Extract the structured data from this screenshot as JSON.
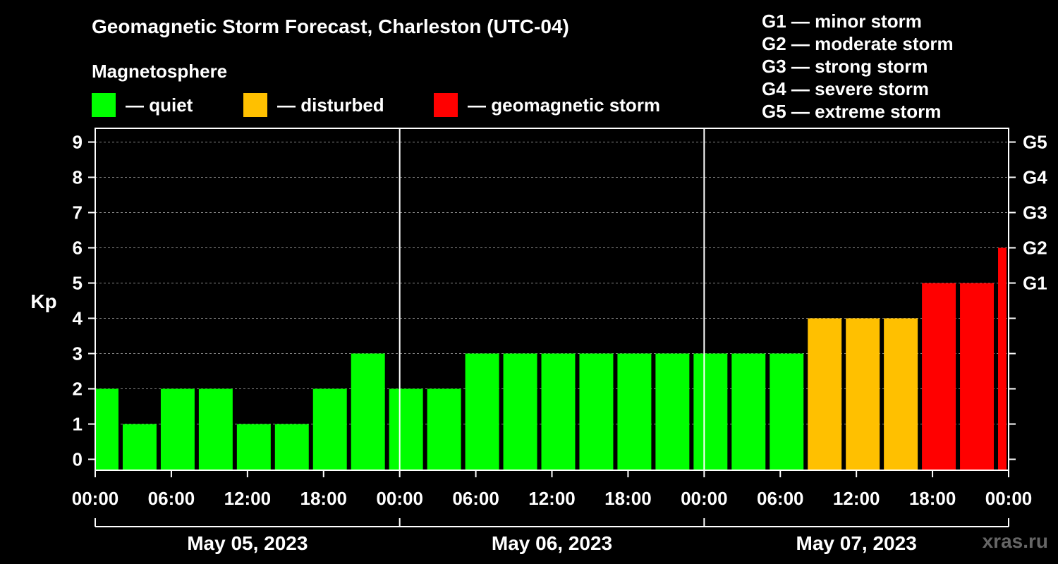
{
  "title": "Geomagnetic Storm Forecast, Charleston (UTC-04)",
  "legend": {
    "heading": "Magnetosphere",
    "items": [
      {
        "label": "— quiet",
        "color": "#00ff00"
      },
      {
        "label": "— disturbed",
        "color": "#ffc000"
      },
      {
        "label": "— geomagnetic storm",
        "color": "#ff0000"
      }
    ]
  },
  "storm_scale": [
    "G1 — minor storm",
    "G2 — moderate storm",
    "G3 — strong storm",
    "G4 — severe storm",
    "G5 — extreme storm"
  ],
  "watermark": "xras.ru",
  "chart_data": {
    "type": "bar",
    "ylabel": "Kp",
    "ylim": [
      0,
      9
    ],
    "yticks": [
      0,
      1,
      2,
      3,
      4,
      5,
      6,
      7,
      8,
      9
    ],
    "right_axis_labels": [
      {
        "kp": 5,
        "label": "G1"
      },
      {
        "kp": 6,
        "label": "G2"
      },
      {
        "kp": 7,
        "label": "G3"
      },
      {
        "kp": 8,
        "label": "G4"
      },
      {
        "kp": 9,
        "label": "G5"
      }
    ],
    "x_start_hour": 0,
    "x_end_hour": 72,
    "x_tick_hours": [
      0,
      6,
      12,
      18,
      24,
      30,
      36,
      42,
      48,
      54,
      60,
      66,
      72
    ],
    "x_tick_labels": [
      "00:00",
      "06:00",
      "12:00",
      "18:00",
      "00:00",
      "06:00",
      "12:00",
      "18:00",
      "00:00",
      "06:00",
      "12:00",
      "18:00",
      "00:00"
    ],
    "dates": [
      "May 05, 2023",
      "May 06, 2023",
      "May 07, 2023"
    ],
    "day_boundaries_hours": [
      24,
      48
    ],
    "bars": [
      {
        "start": 0,
        "end": 2,
        "kp": 2,
        "level": "quiet"
      },
      {
        "start": 2,
        "end": 5,
        "kp": 1,
        "level": "quiet"
      },
      {
        "start": 5,
        "end": 8,
        "kp": 2,
        "level": "quiet"
      },
      {
        "start": 8,
        "end": 11,
        "kp": 2,
        "level": "quiet"
      },
      {
        "start": 11,
        "end": 14,
        "kp": 1,
        "level": "quiet"
      },
      {
        "start": 14,
        "end": 17,
        "kp": 1,
        "level": "quiet"
      },
      {
        "start": 17,
        "end": 20,
        "kp": 2,
        "level": "quiet"
      },
      {
        "start": 20,
        "end": 23,
        "kp": 3,
        "level": "quiet"
      },
      {
        "start": 23,
        "end": 26,
        "kp": 2,
        "level": "quiet"
      },
      {
        "start": 26,
        "end": 29,
        "kp": 2,
        "level": "quiet"
      },
      {
        "start": 29,
        "end": 32,
        "kp": 3,
        "level": "quiet"
      },
      {
        "start": 32,
        "end": 35,
        "kp": 3,
        "level": "quiet"
      },
      {
        "start": 35,
        "end": 38,
        "kp": 3,
        "level": "quiet"
      },
      {
        "start": 38,
        "end": 41,
        "kp": 3,
        "level": "quiet"
      },
      {
        "start": 41,
        "end": 44,
        "kp": 3,
        "level": "quiet"
      },
      {
        "start": 44,
        "end": 47,
        "kp": 3,
        "level": "quiet"
      },
      {
        "start": 47,
        "end": 50,
        "kp": 3,
        "level": "quiet"
      },
      {
        "start": 50,
        "end": 53,
        "kp": 3,
        "level": "quiet"
      },
      {
        "start": 53,
        "end": 56,
        "kp": 3,
        "level": "quiet"
      },
      {
        "start": 56,
        "end": 59,
        "kp": 4,
        "level": "disturbed"
      },
      {
        "start": 59,
        "end": 62,
        "kp": 4,
        "level": "disturbed"
      },
      {
        "start": 62,
        "end": 65,
        "kp": 4,
        "level": "disturbed"
      },
      {
        "start": 65,
        "end": 68,
        "kp": 5,
        "level": "storm"
      },
      {
        "start": 68,
        "end": 71,
        "kp": 5,
        "level": "storm"
      },
      {
        "start": 71,
        "end": 72,
        "kp": 6,
        "level": "storm"
      }
    ],
    "level_colors": {
      "quiet": "#00ff00",
      "disturbed": "#ffc000",
      "storm": "#ff0000"
    }
  }
}
